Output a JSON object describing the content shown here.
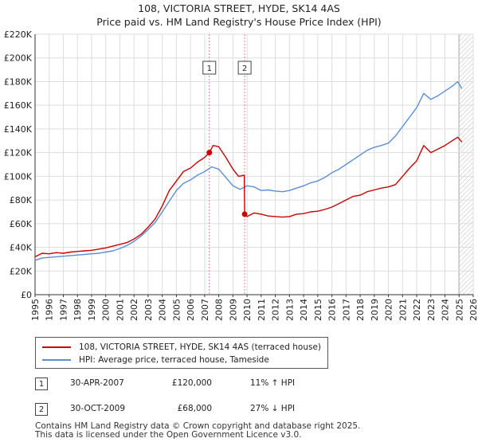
{
  "title_line1": "108, VICTORIA STREET, HYDE, SK14 4AS",
  "title_line2": "Price paid vs. HM Land Registry's House Price Index (HPI)",
  "legend": {
    "red_label": "108, VICTORIA STREET, HYDE, SK14 4AS (terraced house)",
    "blue_label": "HPI: Average price, terraced house, Tameside"
  },
  "transactions": [
    {
      "num": "1",
      "date": "30-APR-2007",
      "price": "£120,000",
      "hpi": "11% ↑ HPI"
    },
    {
      "num": "2",
      "date": "30-OCT-2009",
      "price": "£68,000",
      "hpi": "27% ↓ HPI"
    }
  ],
  "footer": {
    "line1": "Contains HM Land Registry data © Crown copyright and database right 2025.",
    "line2": "This data is licensed under the Open Government Licence v3.0."
  },
  "colors": {
    "red": "#cc0000",
    "blue": "#5b8fd1",
    "grid": "#dddddd",
    "axis": "#333333",
    "vline": "#e08080"
  },
  "chart_data": {
    "type": "line",
    "x_range": [
      1995,
      2026
    ],
    "ylim": [
      0,
      220000
    ],
    "y_ticks": [
      0,
      20000,
      40000,
      60000,
      80000,
      100000,
      120000,
      140000,
      160000,
      180000,
      200000,
      220000
    ],
    "y_tick_labels": [
      "£0",
      "£20K",
      "£40K",
      "£60K",
      "£80K",
      "£100K",
      "£120K",
      "£140K",
      "£160K",
      "£180K",
      "£200K",
      "£220K"
    ],
    "x_ticks": [
      1995,
      1996,
      1997,
      1998,
      1999,
      2000,
      2001,
      2002,
      2003,
      2004,
      2005,
      2006,
      2007,
      2008,
      2009,
      2010,
      2011,
      2012,
      2013,
      2014,
      2015,
      2016,
      2017,
      2018,
      2019,
      2020,
      2021,
      2022,
      2023,
      2024,
      2025,
      2026
    ],
    "x_tick_labels": [
      "1995",
      "1996",
      "1997",
      "1998",
      "1999",
      "2000",
      "2001",
      "2002",
      "2003",
      "2004",
      "2005",
      "2006",
      "2007",
      "2008",
      "2009",
      "2010",
      "2011",
      "2012",
      "2013",
      "2014",
      "2015",
      "2016",
      "2017",
      "2018",
      "2019",
      "2020",
      "2021",
      "2022",
      "2023",
      "2024",
      "2025",
      "2026"
    ],
    "series": [
      {
        "name": "108, VICTORIA STREET, HYDE, SK14 4AS (terraced house)",
        "color": "#cc0000",
        "points": [
          [
            1995.0,
            32000
          ],
          [
            1995.5,
            35000
          ],
          [
            1996.0,
            34500
          ],
          [
            1996.5,
            35500
          ],
          [
            1997.0,
            35000
          ],
          [
            1997.5,
            36000
          ],
          [
            1998.0,
            36500
          ],
          [
            1998.5,
            37000
          ],
          [
            1999.0,
            37500
          ],
          [
            1999.5,
            38500
          ],
          [
            2000.0,
            39500
          ],
          [
            2000.5,
            41000
          ],
          [
            2001.0,
            42500
          ],
          [
            2001.5,
            44000
          ],
          [
            2002.0,
            47000
          ],
          [
            2002.5,
            51000
          ],
          [
            2003.0,
            57000
          ],
          [
            2003.5,
            64000
          ],
          [
            2004.0,
            75000
          ],
          [
            2004.5,
            88000
          ],
          [
            2005.0,
            96000
          ],
          [
            2005.5,
            104000
          ],
          [
            2006.0,
            107000
          ],
          [
            2006.5,
            112000
          ],
          [
            2007.0,
            116000
          ],
          [
            2007.33,
            120000
          ],
          [
            2007.6,
            126000
          ],
          [
            2008.0,
            125000
          ],
          [
            2008.5,
            116000
          ],
          [
            2009.0,
            106000
          ],
          [
            2009.4,
            100000
          ],
          [
            2009.8,
            101000
          ],
          [
            2009.83,
            68000
          ],
          [
            2010.0,
            66000
          ],
          [
            2010.5,
            69000
          ],
          [
            2011.0,
            68000
          ],
          [
            2011.5,
            66500
          ],
          [
            2012.0,
            66000
          ],
          [
            2012.5,
            65500
          ],
          [
            2013.0,
            66000
          ],
          [
            2013.5,
            68000
          ],
          [
            2014.0,
            68500
          ],
          [
            2014.5,
            70000
          ],
          [
            2015.0,
            70500
          ],
          [
            2015.5,
            72000
          ],
          [
            2016.0,
            74000
          ],
          [
            2016.5,
            77000
          ],
          [
            2017.0,
            80000
          ],
          [
            2017.5,
            83000
          ],
          [
            2018.0,
            84000
          ],
          [
            2018.5,
            87000
          ],
          [
            2019.0,
            88500
          ],
          [
            2019.5,
            90000
          ],
          [
            2020.0,
            91000
          ],
          [
            2020.5,
            93000
          ],
          [
            2021.0,
            100000
          ],
          [
            2021.5,
            107000
          ],
          [
            2022.0,
            113000
          ],
          [
            2022.5,
            126000
          ],
          [
            2023.0,
            120000
          ],
          [
            2023.5,
            123000
          ],
          [
            2024.0,
            126000
          ],
          [
            2024.5,
            130000
          ],
          [
            2024.9,
            133000
          ],
          [
            2025.2,
            129000
          ]
        ]
      },
      {
        "name": "HPI: Average price, terraced house, Tameside",
        "color": "#5b8fd1",
        "points": [
          [
            1995.0,
            29000
          ],
          [
            1995.5,
            31000
          ],
          [
            1996.0,
            31500
          ],
          [
            1996.5,
            32000
          ],
          [
            1997.0,
            32500
          ],
          [
            1997.5,
            33000
          ],
          [
            1998.0,
            33500
          ],
          [
            1998.5,
            34000
          ],
          [
            1999.0,
            34500
          ],
          [
            1999.5,
            35000
          ],
          [
            2000.0,
            36000
          ],
          [
            2000.5,
            37000
          ],
          [
            2001.0,
            39000
          ],
          [
            2001.5,
            41500
          ],
          [
            2002.0,
            45000
          ],
          [
            2002.5,
            49500
          ],
          [
            2003.0,
            55000
          ],
          [
            2003.5,
            61000
          ],
          [
            2004.0,
            70000
          ],
          [
            2004.5,
            79000
          ],
          [
            2005.0,
            88000
          ],
          [
            2005.5,
            94000
          ],
          [
            2006.0,
            97000
          ],
          [
            2006.5,
            101000
          ],
          [
            2007.0,
            104000
          ],
          [
            2007.5,
            108000
          ],
          [
            2008.0,
            106000
          ],
          [
            2008.5,
            99000
          ],
          [
            2009.0,
            92000
          ],
          [
            2009.5,
            89000
          ],
          [
            2010.0,
            92000
          ],
          [
            2010.5,
            91000
          ],
          [
            2011.0,
            88000
          ],
          [
            2011.5,
            88500
          ],
          [
            2012.0,
            87500
          ],
          [
            2012.5,
            87000
          ],
          [
            2013.0,
            88000
          ],
          [
            2013.5,
            90000
          ],
          [
            2014.0,
            92000
          ],
          [
            2014.5,
            94500
          ],
          [
            2015.0,
            96000
          ],
          [
            2015.5,
            99000
          ],
          [
            2016.0,
            103000
          ],
          [
            2016.5,
            106000
          ],
          [
            2017.0,
            110000
          ],
          [
            2017.5,
            114000
          ],
          [
            2018.0,
            118000
          ],
          [
            2018.5,
            122000
          ],
          [
            2019.0,
            124500
          ],
          [
            2019.5,
            126000
          ],
          [
            2020.0,
            128000
          ],
          [
            2020.5,
            134000
          ],
          [
            2021.0,
            142000
          ],
          [
            2021.5,
            150000
          ],
          [
            2022.0,
            158000
          ],
          [
            2022.5,
            170000
          ],
          [
            2023.0,
            165000
          ],
          [
            2023.5,
            168000
          ],
          [
            2024.0,
            172000
          ],
          [
            2024.5,
            176000
          ],
          [
            2024.9,
            180000
          ],
          [
            2025.2,
            174000
          ]
        ]
      }
    ],
    "transactions": [
      {
        "label": "1",
        "x": 2007.33,
        "y": 120000
      },
      {
        "label": "2",
        "x": 2009.83,
        "y": 68000
      }
    ],
    "hatched_from": 2025.0
  }
}
